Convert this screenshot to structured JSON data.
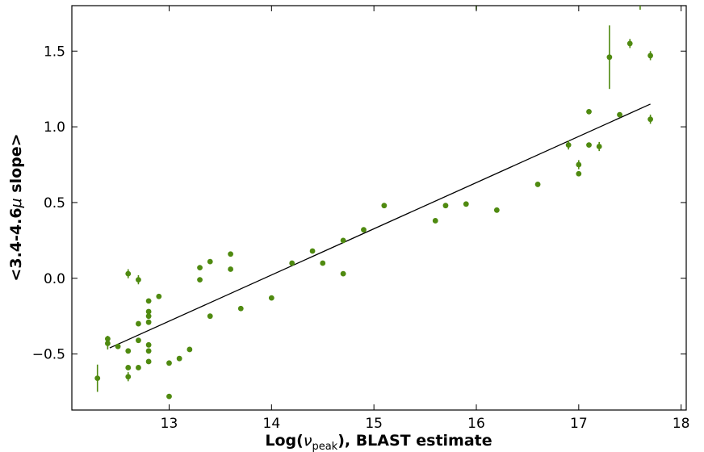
{
  "chart_data": {
    "type": "scatter",
    "xlabel_prefix": "Log(",
    "xlabel_symbol": "ν",
    "xlabel_subscript": "peak",
    "xlabel_suffix": "), BLAST estimate",
    "ylabel_prefix": "<3.4-4.6",
    "ylabel_symbol": "μ",
    "ylabel_suffix": " slope>",
    "xlim": [
      12.05,
      18.05
    ],
    "ylim": [
      -0.87,
      1.8
    ],
    "xticks": [
      13,
      14,
      15,
      16,
      17,
      18
    ],
    "yticks": [
      -0.5,
      0.0,
      0.5,
      1.0,
      1.5
    ],
    "ytick_labels": [
      "−0.5",
      "0.0",
      "0.5",
      "1.0",
      "1.5"
    ],
    "colors": {
      "points": "#4f8a10",
      "fit": "#000000"
    },
    "fit_line": {
      "x": [
        12.42,
        17.7
      ],
      "y": [
        -0.46,
        1.15
      ]
    },
    "points": [
      {
        "x": 12.3,
        "y": -0.66,
        "err": 0.09
      },
      {
        "x": 12.4,
        "y": -0.4,
        "err": 0.02
      },
      {
        "x": 12.4,
        "y": -0.43,
        "err": 0.04
      },
      {
        "x": 12.5,
        "y": -0.45,
        "err": 0
      },
      {
        "x": 12.6,
        "y": 0.03,
        "err": 0.03
      },
      {
        "x": 12.6,
        "y": -0.48,
        "err": 0
      },
      {
        "x": 12.6,
        "y": -0.59,
        "err": 0
      },
      {
        "x": 12.6,
        "y": -0.65,
        "err": 0.03
      },
      {
        "x": 12.7,
        "y": -0.01,
        "err": 0.03
      },
      {
        "x": 12.7,
        "y": -0.3,
        "err": 0
      },
      {
        "x": 12.7,
        "y": -0.41,
        "err": 0
      },
      {
        "x": 12.7,
        "y": -0.59,
        "err": 0
      },
      {
        "x": 12.8,
        "y": -0.15,
        "err": 0
      },
      {
        "x": 12.8,
        "y": -0.22,
        "err": 0
      },
      {
        "x": 12.8,
        "y": -0.25,
        "err": 0
      },
      {
        "x": 12.8,
        "y": -0.29,
        "err": 0
      },
      {
        "x": 12.8,
        "y": -0.44,
        "err": 0
      },
      {
        "x": 12.8,
        "y": -0.48,
        "err": 0
      },
      {
        "x": 12.8,
        "y": -0.55,
        "err": 0
      },
      {
        "x": 12.9,
        "y": -0.12,
        "err": 0
      },
      {
        "x": 13.0,
        "y": -0.56,
        "err": 0
      },
      {
        "x": 13.0,
        "y": -0.78,
        "err": 0
      },
      {
        "x": 13.1,
        "y": -0.53,
        "err": 0
      },
      {
        "x": 13.2,
        "y": -0.47,
        "err": 0
      },
      {
        "x": 13.3,
        "y": 0.07,
        "err": 0
      },
      {
        "x": 13.3,
        "y": -0.01,
        "err": 0
      },
      {
        "x": 13.4,
        "y": 0.11,
        "err": 0
      },
      {
        "x": 13.4,
        "y": -0.25,
        "err": 0
      },
      {
        "x": 13.6,
        "y": 0.16,
        "err": 0
      },
      {
        "x": 13.6,
        "y": 0.06,
        "err": 0
      },
      {
        "x": 13.7,
        "y": -0.2,
        "err": 0
      },
      {
        "x": 14.0,
        "y": -0.13,
        "err": 0
      },
      {
        "x": 14.2,
        "y": 0.1,
        "err": 0
      },
      {
        "x": 14.4,
        "y": 0.18,
        "err": 0
      },
      {
        "x": 14.5,
        "y": 0.1,
        "err": 0
      },
      {
        "x": 14.7,
        "y": 0.25,
        "err": 0
      },
      {
        "x": 14.7,
        "y": 0.03,
        "err": 0
      },
      {
        "x": 14.9,
        "y": 0.32,
        "err": 0
      },
      {
        "x": 15.1,
        "y": 0.48,
        "err": 0
      },
      {
        "x": 15.6,
        "y": 0.38,
        "err": 0
      },
      {
        "x": 15.7,
        "y": 0.48,
        "err": 0
      },
      {
        "x": 15.9,
        "y": 0.49,
        "err": 0
      },
      {
        "x": 16.2,
        "y": 0.45,
        "err": 0
      },
      {
        "x": 16.6,
        "y": 0.62,
        "err": 0
      },
      {
        "x": 16.9,
        "y": 0.88,
        "err": 0.03
      },
      {
        "x": 17.0,
        "y": 0.75,
        "err": 0.03
      },
      {
        "x": 17.0,
        "y": 0.69,
        "err": 0
      },
      {
        "x": 17.1,
        "y": 1.1,
        "err": 0
      },
      {
        "x": 17.1,
        "y": 0.88,
        "err": 0
      },
      {
        "x": 17.2,
        "y": 0.87,
        "err": 0.03
      },
      {
        "x": 17.3,
        "y": 1.46,
        "err": 0.21
      },
      {
        "x": 17.4,
        "y": 1.08,
        "err": 0
      },
      {
        "x": 17.5,
        "y": 1.55,
        "err": 0.03
      },
      {
        "x": 17.7,
        "y": 1.47,
        "err": 0.03
      },
      {
        "x": 17.7,
        "y": 1.05,
        "err": 0.03
      }
    ],
    "offscale_error_bars_x": [
      16.0,
      17.6
    ]
  }
}
